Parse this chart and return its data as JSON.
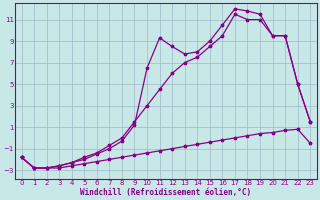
{
  "xlabel": "Windchill (Refroidissement éolien,°C)",
  "bg_color": "#c8e8e8",
  "grid_color": "#a0b8c8",
  "line_color": "#880088",
  "xlim": [
    -0.5,
    23.5
  ],
  "ylim": [
    -3.8,
    12.5
  ],
  "xticks": [
    0,
    1,
    2,
    3,
    4,
    5,
    6,
    7,
    8,
    9,
    10,
    11,
    12,
    13,
    14,
    15,
    16,
    17,
    18,
    19,
    20,
    21,
    22,
    23
  ],
  "yticks": [
    -3,
    -1,
    1,
    3,
    5,
    7,
    9,
    11
  ],
  "line1_x": [
    0,
    1,
    2,
    3,
    4,
    5,
    6,
    7,
    8,
    9,
    10,
    11,
    12,
    13,
    14,
    15,
    16,
    17,
    18,
    19,
    20,
    21,
    22,
    23
  ],
  "line1_y": [
    -1.8,
    -2.8,
    -2.8,
    -2.8,
    -2.6,
    -2.4,
    -2.2,
    -2.0,
    -1.8,
    -1.6,
    -1.4,
    -1.2,
    -1.0,
    -0.8,
    -0.6,
    -0.4,
    -0.2,
    0.0,
    0.2,
    0.4,
    0.5,
    0.7,
    0.8,
    -0.5
  ],
  "line2_x": [
    0,
    1,
    2,
    3,
    4,
    5,
    6,
    7,
    8,
    9,
    10,
    11,
    12,
    13,
    14,
    15,
    16,
    17,
    18,
    19,
    20,
    21,
    22,
    23
  ],
  "line2_y": [
    -1.8,
    -2.8,
    -2.8,
    -2.6,
    -2.3,
    -1.8,
    -1.4,
    -0.7,
    0.0,
    1.5,
    3.0,
    4.5,
    6.0,
    7.0,
    7.5,
    8.5,
    9.5,
    11.5,
    11.0,
    11.0,
    9.5,
    9.5,
    5.0,
    1.5
  ],
  "line3_x": [
    0,
    1,
    2,
    3,
    4,
    5,
    6,
    7,
    8,
    9,
    10,
    11,
    12,
    13,
    14,
    15,
    16,
    17,
    18,
    19,
    20,
    21,
    22,
    23
  ],
  "line3_y": [
    -1.8,
    -2.8,
    -2.8,
    -2.6,
    -2.3,
    -2.0,
    -1.5,
    -1.0,
    -0.3,
    1.2,
    6.5,
    9.3,
    8.5,
    7.8,
    8.0,
    9.0,
    10.5,
    12.0,
    11.8,
    11.5,
    9.5,
    9.5,
    5.0,
    1.5
  ]
}
